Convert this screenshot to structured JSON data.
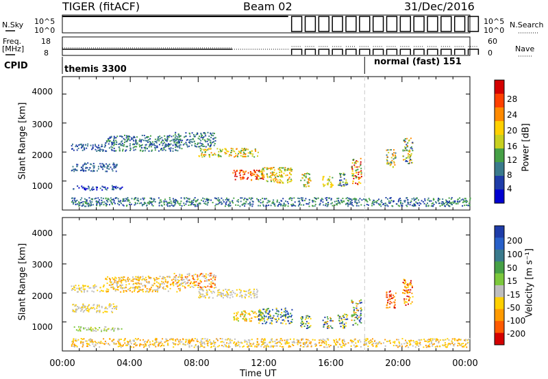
{
  "header": {
    "radar": "TIGER (fitACF)",
    "beam": "Beam 02",
    "date": "31/Dec/2016"
  },
  "status_panel": {
    "nsky_label": "N.Sky",
    "nsky_ticks": [
      "10^5",
      "10^0"
    ],
    "nsearch_label": "N.Search",
    "nsearch_ticks": [
      "10^5",
      "10^0"
    ],
    "freq_label": "Freq.",
    "freq_unit": "[MHz]",
    "freq_ticks": [
      "18",
      "8"
    ],
    "nave_label": "Nave",
    "nave_ticks": [
      "60",
      "0"
    ],
    "cpid_label": "CPID",
    "cpid_segments": [
      {
        "name": "themis 3300",
        "start_hour": 0,
        "end_hour": 17.8
      },
      {
        "name": "normal (fast) 151",
        "start_hour": 17.8,
        "end_hour": 24
      }
    ],
    "sounding_bursts_start_hour": 13.5,
    "sounding_bursts_step_hour": 0.8
  },
  "chart_data": [
    {
      "type": "heatmap",
      "title": "",
      "xlabel": "",
      "ylabel": "Slant Range [km]",
      "x_range_hours": [
        0,
        24
      ],
      "ylim": [
        0,
        4600
      ],
      "y_ticks": [
        "4000",
        "3000",
        "2000",
        "1000"
      ],
      "colorbar_label": "Power [dB]",
      "colorbar_ticks": [
        "28",
        "24",
        "20",
        "16",
        "12",
        "8",
        "4"
      ],
      "colorbar_colors": [
        "#d40000",
        "#ff4000",
        "#ff8a00",
        "#ffd000",
        "#c8d020",
        "#46a046",
        "#3a7a8c",
        "#1e3ca8",
        "#0000d0"
      ],
      "scatter_regions": [
        {
          "t0": 0.6,
          "t1": 3.5,
          "r0": 700,
          "r1": 860,
          "colors": [
            "#1e3ca8",
            "#3a7a8c",
            "#0000d0"
          ]
        },
        {
          "t0": 0.5,
          "t1": 3.2,
          "r0": 1350,
          "r1": 1650,
          "colors": [
            "#1e3ca8",
            "#3a7a8c"
          ]
        },
        {
          "t0": 0.5,
          "t1": 2.5,
          "r0": 2050,
          "r1": 2300,
          "colors": [
            "#1e3ca8",
            "#3a7a8c"
          ]
        },
        {
          "t0": 2.5,
          "t1": 7.0,
          "r0": 2050,
          "r1": 2600,
          "colors": [
            "#1e3ca8",
            "#3a7a8c",
            "#46a046"
          ]
        },
        {
          "t0": 6.5,
          "t1": 9.0,
          "r0": 2200,
          "r1": 2700,
          "colors": [
            "#3a7a8c",
            "#46a046",
            "#1e3ca8"
          ]
        },
        {
          "t0": 8.0,
          "t1": 11.5,
          "r0": 1850,
          "r1": 2150,
          "colors": [
            "#c8d020",
            "#ffd000",
            "#ff8a00",
            "#46a046"
          ]
        },
        {
          "t0": 10.0,
          "t1": 11.8,
          "r0": 1050,
          "r1": 1400,
          "colors": [
            "#ff4000",
            "#d40000",
            "#ff8a00"
          ]
        },
        {
          "t0": 11.5,
          "t1": 13.5,
          "r0": 950,
          "r1": 1500,
          "colors": [
            "#ff8a00",
            "#ffd000",
            "#c8d020",
            "#46a046"
          ]
        },
        {
          "t0": 14.0,
          "t1": 14.6,
          "r0": 800,
          "r1": 1300,
          "colors": [
            "#c8d020",
            "#46a046",
            "#ff8a00"
          ]
        },
        {
          "t0": 15.3,
          "t1": 15.9,
          "r0": 800,
          "r1": 1200,
          "colors": [
            "#ffd000",
            "#46a046",
            "#c8d020"
          ]
        },
        {
          "t0": 16.2,
          "t1": 16.8,
          "r0": 800,
          "r1": 1300,
          "colors": [
            "#c8d020",
            "#46a046",
            "#1e3ca8"
          ]
        },
        {
          "t0": 17.0,
          "t1": 17.6,
          "r0": 900,
          "r1": 1800,
          "colors": [
            "#ff8a00",
            "#ffd000",
            "#46a046",
            "#d40000"
          ]
        },
        {
          "t0": 19.0,
          "t1": 19.6,
          "r0": 1500,
          "r1": 2100,
          "colors": [
            "#c8d020",
            "#ff8a00",
            "#3a7a8c"
          ]
        },
        {
          "t0": 20.0,
          "t1": 20.6,
          "r0": 1600,
          "r1": 2500,
          "colors": [
            "#ff8a00",
            "#46a046",
            "#c8d020",
            "#1e3ca8"
          ]
        },
        {
          "t0": 0.5,
          "t1": 24.0,
          "r0": 150,
          "r1": 450,
          "colors": [
            "#1e3ca8",
            "#3a7a8c",
            "#46a046"
          ]
        }
      ]
    },
    {
      "type": "heatmap",
      "title": "",
      "xlabel": "Time UT",
      "ylabel": "Slant Range [km]",
      "x_range_hours": [
        0,
        24
      ],
      "ylim": [
        0,
        4600
      ],
      "y_ticks": [
        "4000",
        "3000",
        "2000",
        "1000"
      ],
      "x_ticks": [
        "00:00",
        "04:00",
        "08:00",
        "12:00",
        "16:00",
        "20:00",
        "00:00"
      ],
      "colorbar_label": "Velocity [m s⁻¹]",
      "colorbar_ticks": [
        "200",
        "100",
        "50",
        "15",
        "-15",
        "-50",
        "-100",
        "-200"
      ],
      "colorbar_colors": [
        "#1e3ca8",
        "#2860c8",
        "#3a7a8c",
        "#46a046",
        "#7cc83c",
        "#bebebe",
        "#ffd000",
        "#ff9a00",
        "#ff5a00",
        "#d40000"
      ],
      "scatter_regions": [
        {
          "t0": 0.6,
          "t1": 3.5,
          "r0": 700,
          "r1": 860,
          "colors": [
            "#7cc83c",
            "#c8d020",
            "#bebebe"
          ]
        },
        {
          "t0": 0.5,
          "t1": 3.2,
          "r0": 1350,
          "r1": 1650,
          "colors": [
            "#bebebe",
            "#ffd000"
          ]
        },
        {
          "t0": 0.5,
          "t1": 2.5,
          "r0": 2050,
          "r1": 2300,
          "colors": [
            "#bebebe",
            "#ffd000"
          ]
        },
        {
          "t0": 2.5,
          "t1": 7.0,
          "r0": 2050,
          "r1": 2600,
          "colors": [
            "#bebebe",
            "#ffd000",
            "#ff9a00"
          ]
        },
        {
          "t0": 6.5,
          "t1": 9.0,
          "r0": 2200,
          "r1": 2700,
          "colors": [
            "#ffd000",
            "#ff5a00",
            "#bebebe"
          ]
        },
        {
          "t0": 8.0,
          "t1": 11.5,
          "r0": 1850,
          "r1": 2150,
          "colors": [
            "#bebebe",
            "#bebebe",
            "#ffd000"
          ]
        },
        {
          "t0": 10.0,
          "t1": 11.8,
          "r0": 1050,
          "r1": 1400,
          "colors": [
            "#ffd000",
            "#7cc83c",
            "#ff9a00"
          ]
        },
        {
          "t0": 11.5,
          "t1": 13.5,
          "r0": 950,
          "r1": 1500,
          "colors": [
            "#1e3ca8",
            "#2860c8",
            "#ffd000",
            "#46a046"
          ]
        },
        {
          "t0": 14.0,
          "t1": 14.6,
          "r0": 800,
          "r1": 1300,
          "colors": [
            "#1e3ca8",
            "#46a046",
            "#ffd000"
          ]
        },
        {
          "t0": 15.3,
          "t1": 15.9,
          "r0": 800,
          "r1": 1200,
          "colors": [
            "#1e3ca8",
            "#ff9a00",
            "#46a046"
          ]
        },
        {
          "t0": 16.2,
          "t1": 16.8,
          "r0": 800,
          "r1": 1300,
          "colors": [
            "#46a046",
            "#1e3ca8",
            "#ffd000"
          ]
        },
        {
          "t0": 17.0,
          "t1": 17.6,
          "r0": 900,
          "r1": 1800,
          "colors": [
            "#46a046",
            "#1e3ca8",
            "#ff9a00",
            "#7cc83c"
          ]
        },
        {
          "t0": 19.0,
          "t1": 19.6,
          "r0": 1500,
          "r1": 2100,
          "colors": [
            "#ff5a00",
            "#d40000",
            "#ff9a00"
          ]
        },
        {
          "t0": 20.0,
          "t1": 20.6,
          "r0": 1600,
          "r1": 2500,
          "colors": [
            "#ff9a00",
            "#d40000",
            "#ffd000"
          ]
        },
        {
          "t0": 0.5,
          "t1": 24.0,
          "r0": 150,
          "r1": 450,
          "colors": [
            "#ffd000",
            "#ff9a00",
            "#bebebe"
          ]
        }
      ]
    }
  ]
}
